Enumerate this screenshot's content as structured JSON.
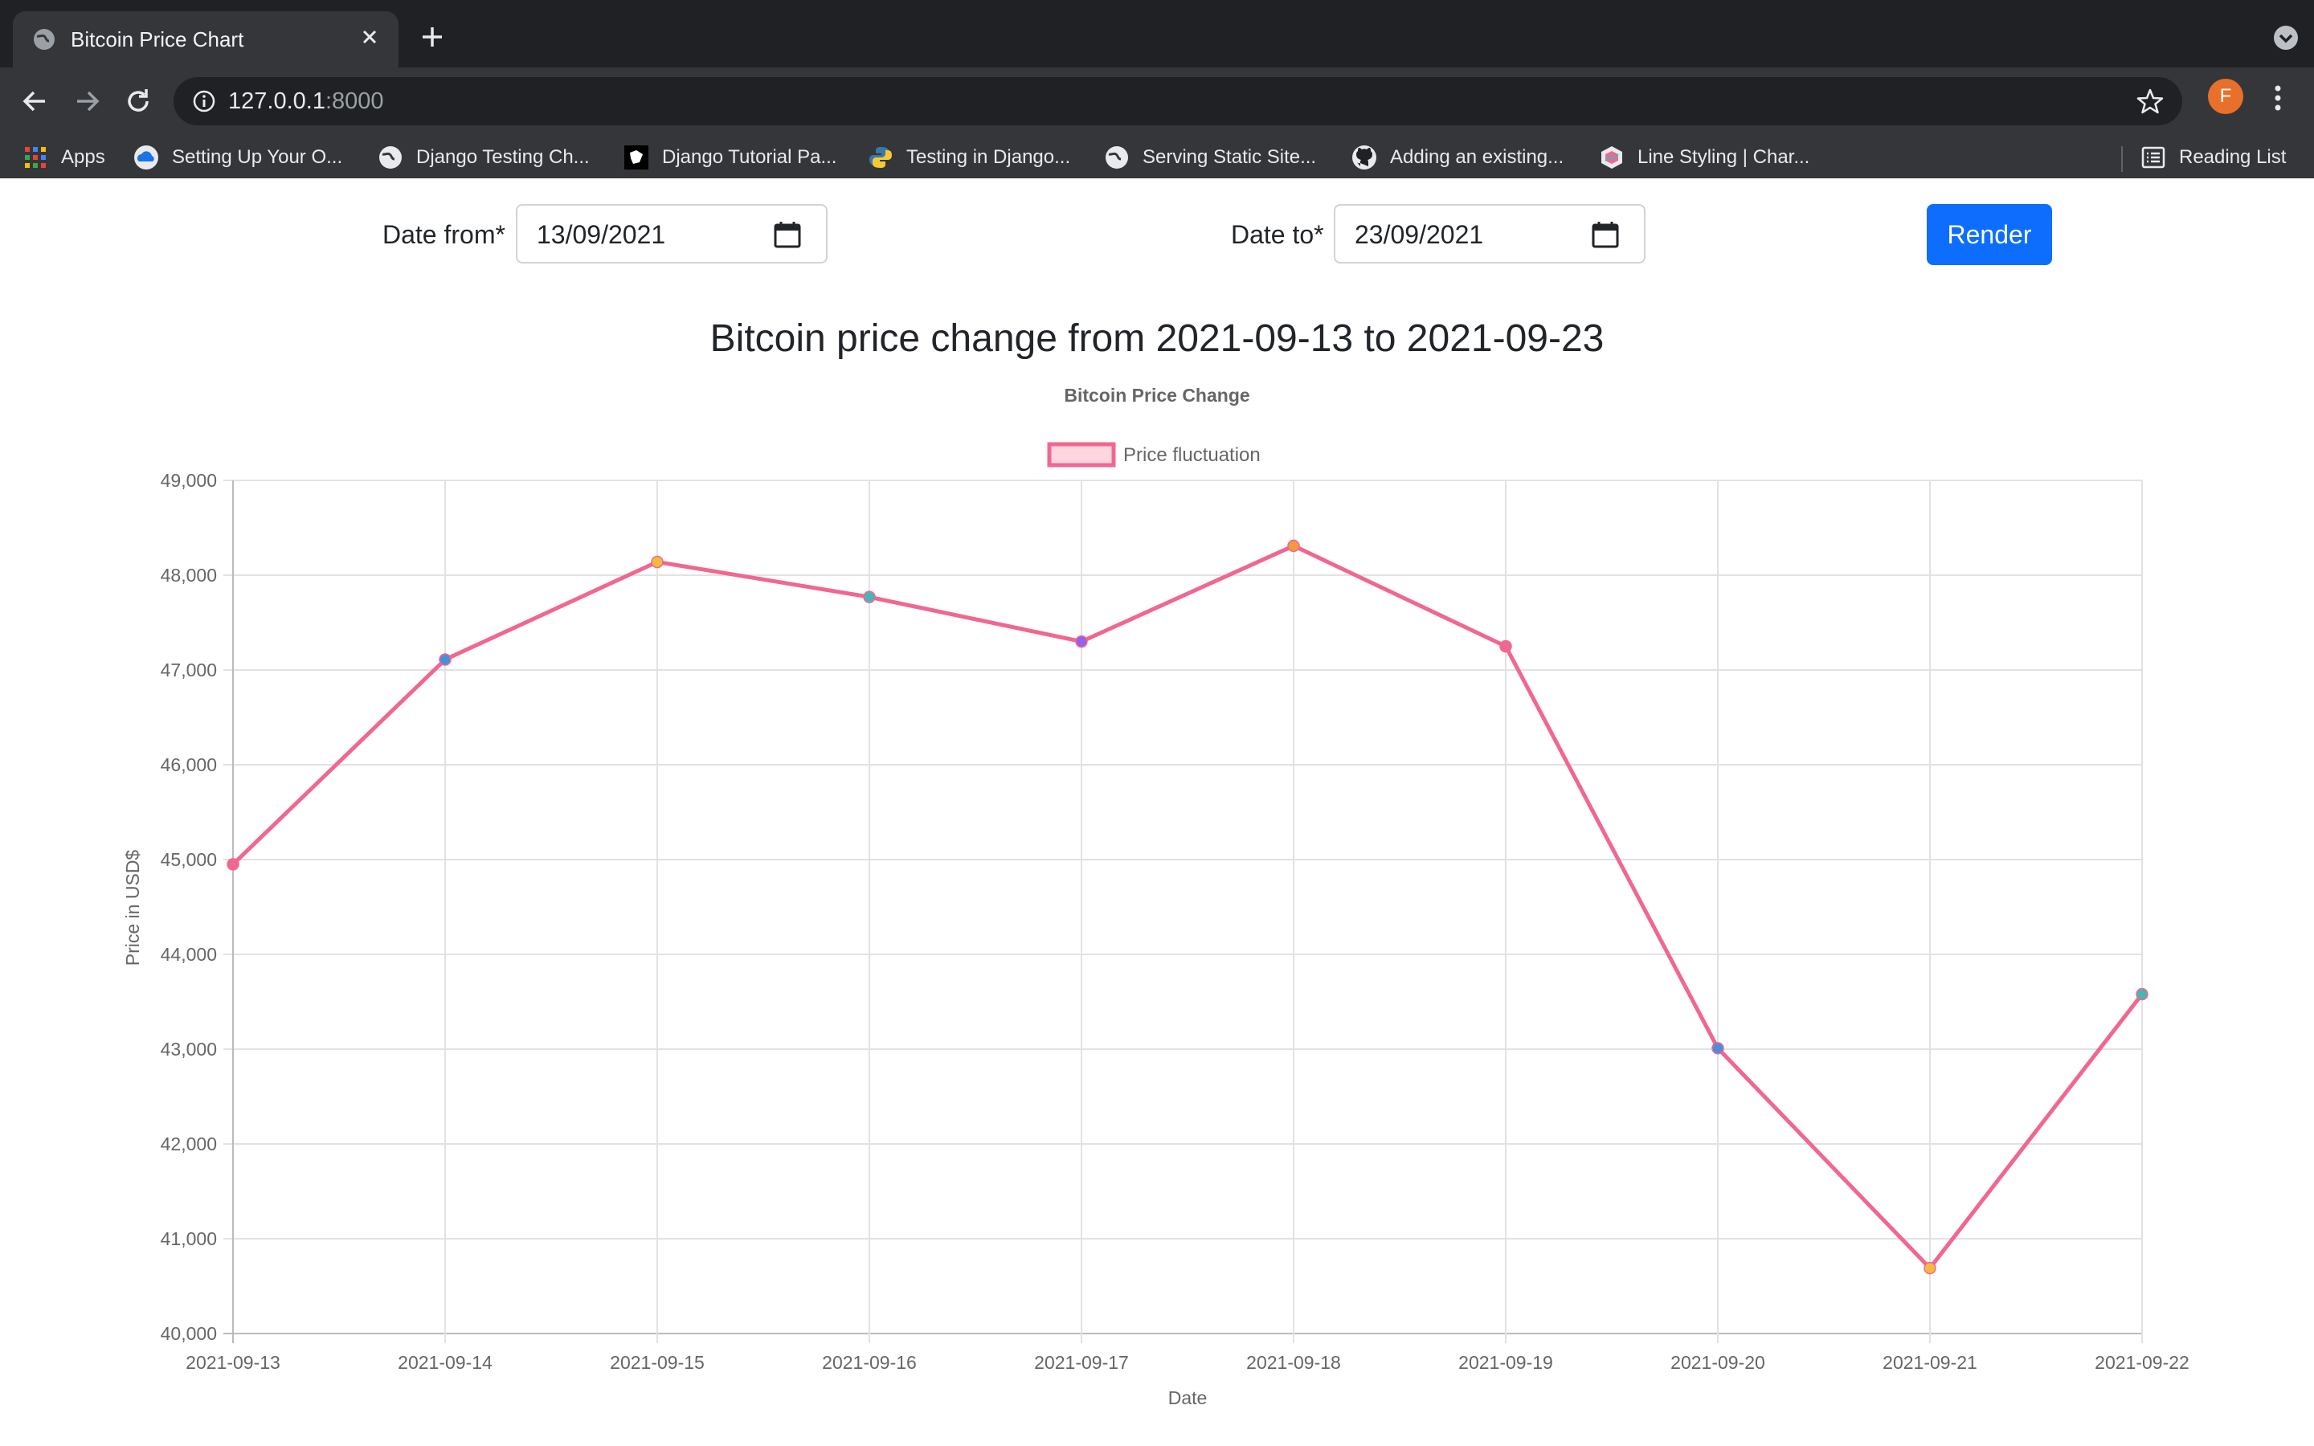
{
  "browser": {
    "tab_title": "Bitcoin Price Chart",
    "url_host": "127.0.0.1",
    "url_port": ":8000",
    "profile_initial": "F",
    "bookmarks": [
      {
        "label": "Apps",
        "icon": "apps-grid-icon"
      },
      {
        "label": "Setting Up Your O...",
        "icon": "cloud-icon"
      },
      {
        "label": "Django Testing Ch...",
        "icon": "globe-icon"
      },
      {
        "label": "Django Tutorial Pa...",
        "icon": "mdn-icon"
      },
      {
        "label": "Testing in Django...",
        "icon": "python-icon"
      },
      {
        "label": "Serving Static Site...",
        "icon": "globe-icon"
      },
      {
        "label": "Adding an existing...",
        "icon": "github-icon"
      },
      {
        "label": "Line Styling | Char...",
        "icon": "chartjs-icon"
      }
    ],
    "reading_list": "Reading List"
  },
  "form": {
    "date_from_label": "Date from*",
    "date_from_value": "13/09/2021",
    "date_to_label": "Date to*",
    "date_to_value": "23/09/2021",
    "render_label": "Render"
  },
  "heading": "Bitcoin price change from 2021-09-13 to 2021-09-23",
  "colors": {
    "line": "#f06790",
    "legend_fill": "#ffd6e0",
    "button": "#0d6efd",
    "point_colors": [
      "#f06790",
      "#4a90d9",
      "#f5b940",
      "#4bb5b5",
      "#9461e8",
      "#f39a3c",
      "#f06790",
      "#4a90d9",
      "#f5b940",
      "#4bb5b5"
    ]
  },
  "chart_data": {
    "type": "line",
    "title": "Bitcoin Price Change",
    "legend": "Price fluctuation",
    "xlabel": "Date",
    "ylabel": "Price in USD$",
    "categories": [
      "2021-09-13",
      "2021-09-14",
      "2021-09-15",
      "2021-09-16",
      "2021-09-17",
      "2021-09-18",
      "2021-09-19",
      "2021-09-20",
      "2021-09-21",
      "2021-09-22"
    ],
    "values": [
      44950,
      47110,
      48140,
      47770,
      47300,
      48310,
      47250,
      43010,
      40690,
      43580
    ],
    "ylim": [
      40000,
      49000
    ],
    "yticks": [
      40000,
      41000,
      42000,
      43000,
      44000,
      45000,
      46000,
      47000,
      48000,
      49000
    ],
    "ytick_labels": [
      "40,000",
      "41,000",
      "42,000",
      "43,000",
      "44,000",
      "45,000",
      "46,000",
      "47,000",
      "48,000",
      "49,000"
    ]
  }
}
